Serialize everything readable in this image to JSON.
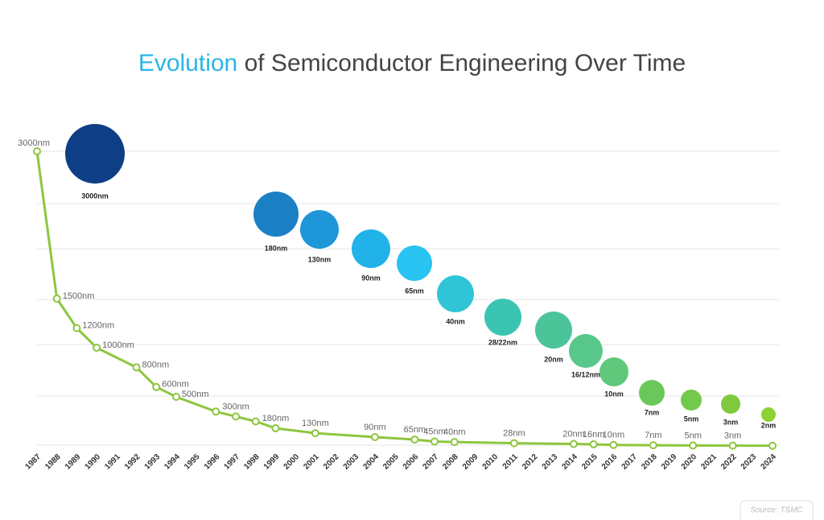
{
  "chart_data": {
    "type": "line",
    "title": [
      "Evolution",
      "of Semiconductor Engineering Over Time"
    ],
    "title_colors": [
      "#29b6e8",
      "#444444"
    ],
    "x": [
      1987,
      1988,
      1989,
      1990,
      1992,
      1993,
      1994,
      1996,
      1997,
      1998,
      1999,
      2001,
      2004,
      2006,
      2007,
      2008,
      2011,
      2014,
      2015,
      2016,
      2018,
      2020,
      2022,
      2024
    ],
    "values": [
      3000,
      1500,
      1200,
      1000,
      800,
      600,
      500,
      350,
      300,
      250,
      180,
      130,
      90,
      65,
      45,
      40,
      28,
      20,
      16,
      10,
      7,
      5,
      3,
      2
    ],
    "value_labels": [
      "3000nm",
      "1500nm",
      "1200nm",
      "1000nm",
      "800nm",
      "600nm",
      "500nm",
      null,
      "300nm",
      null,
      "180nm",
      "130nm",
      "90nm",
      "65nm",
      "45nm",
      "40nm",
      "28nm",
      "20nm",
      "16nm",
      "10nm",
      "7nm",
      "5nm",
      "3nm",
      null
    ],
    "color": "#8dc63f",
    "xlim": [
      1987,
      2024
    ],
    "xticks": [
      1987,
      1988,
      1989,
      1990,
      1991,
      1992,
      1993,
      1994,
      1995,
      1996,
      1997,
      1998,
      1999,
      2000,
      2001,
      2002,
      2003,
      2004,
      2005,
      2006,
      2007,
      2008,
      2009,
      2010,
      2011,
      2012,
      2013,
      2014,
      2015,
      2016,
      2017,
      2018,
      2019,
      2020,
      2021,
      2022,
      2023,
      2024
    ],
    "ylim": [
      0,
      3000
    ],
    "bubbles": [
      {
        "label": "3000nm",
        "color": "#0e3f86"
      },
      {
        "label": "180nm",
        "color": "#1b7fc4"
      },
      {
        "label": "130nm",
        "color": "#1e96d7"
      },
      {
        "label": "90nm",
        "color": "#22b2ea"
      },
      {
        "label": "65nm",
        "color": "#28c3f0"
      },
      {
        "label": "40nm",
        "color": "#30c5d6"
      },
      {
        "label": "28/22nm",
        "color": "#3cc4b2"
      },
      {
        "label": "20nm",
        "color": "#4cc49a"
      },
      {
        "label": "16/12nm",
        "color": "#58c78a"
      },
      {
        "label": "10nm",
        "color": "#5fc87a"
      },
      {
        "label": "7nm",
        "color": "#6ac85a"
      },
      {
        "label": "5nm",
        "color": "#72c94c"
      },
      {
        "label": "3nm",
        "color": "#7ec93e"
      },
      {
        "label": "2nm",
        "color": "#8cd232"
      }
    ],
    "source": "Source: TSMC"
  }
}
